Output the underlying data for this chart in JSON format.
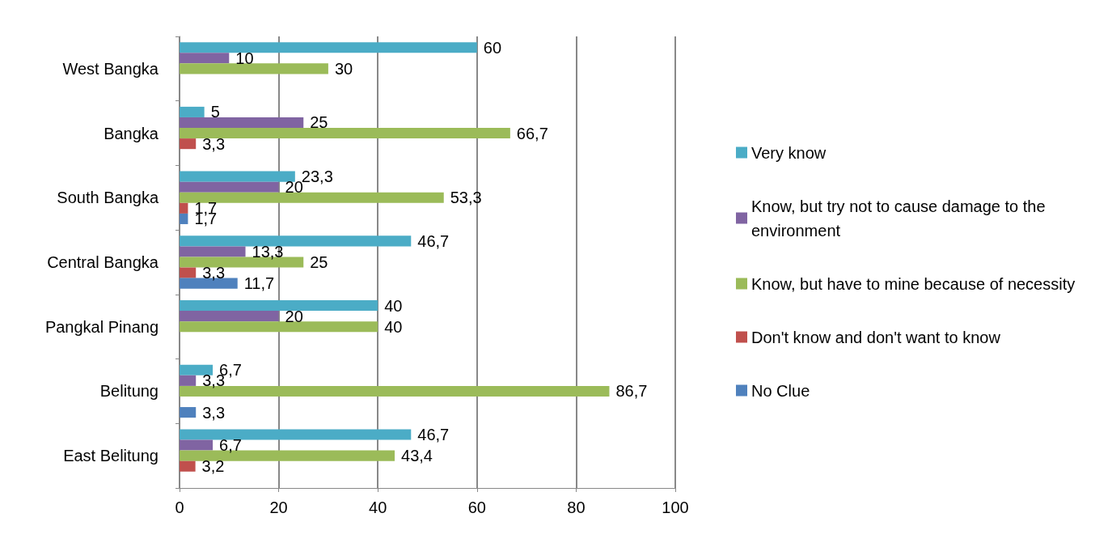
{
  "chart_data": {
    "type": "bar",
    "orientation": "horizontal",
    "categories": [
      "West Bangka",
      "Bangka",
      "South Bangka",
      "Central Bangka",
      "Pangkal Pinang",
      "Belitung",
      "East Belitung"
    ],
    "series": [
      {
        "name": "Very know",
        "color": "#4bacc6",
        "values": [
          60,
          5,
          23.3,
          46.7,
          40,
          6.7,
          46.7
        ],
        "value_labels": [
          "60",
          "5",
          "23,3",
          "46,7",
          "40",
          "6,7",
          "46,7"
        ]
      },
      {
        "name": "Know, but try not to cause damage to the environment",
        "color": "#8064a2",
        "values": [
          10,
          25,
          20,
          13.3,
          20,
          3.3,
          6.7
        ],
        "value_labels": [
          "10",
          "25",
          "20",
          "13,3",
          "20",
          "3,3",
          "6,7"
        ]
      },
      {
        "name": "Know, but have to mine because of necessity",
        "color": "#9bbb59",
        "values": [
          30,
          66.7,
          53.3,
          25,
          40,
          86.7,
          43.4
        ],
        "value_labels": [
          "30",
          "66,7",
          "53,3",
          "25",
          "40",
          "86,7",
          "43,4"
        ]
      },
      {
        "name": "Don't know and don't want to know",
        "color": "#c0504d",
        "values": [
          null,
          3.3,
          1.7,
          3.3,
          null,
          null,
          3.2
        ],
        "value_labels": [
          null,
          "3,3",
          "1,7",
          "3,3",
          null,
          null,
          "3,2"
        ]
      },
      {
        "name": "No Clue",
        "color": "#4f81bd",
        "values": [
          null,
          null,
          1.7,
          11.7,
          null,
          3.3,
          null
        ],
        "value_labels": [
          null,
          null,
          "1,7",
          "11,7",
          null,
          "3,3",
          null
        ]
      }
    ],
    "xlim": [
      0,
      100
    ],
    "xticks": [
      0,
      20,
      40,
      60,
      80,
      100
    ],
    "grid": "x",
    "legend": "right"
  }
}
